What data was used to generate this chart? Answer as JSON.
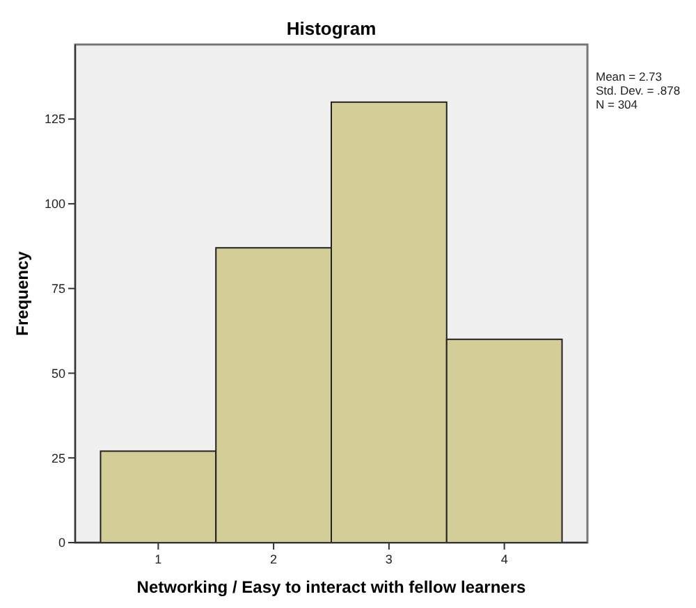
{
  "chart_data": {
    "type": "histogram",
    "title": "Histogram",
    "xlabel": "Networking / Easy to interact with fellow learners",
    "ylabel": "Frequency",
    "bins": [
      0.5,
      1.5,
      2.5,
      3.5,
      4.5
    ],
    "values": [
      27,
      87,
      130,
      60
    ],
    "color": "#d3ce97",
    "xlim": [
      0.28,
      4.72
    ],
    "xticks": [
      1,
      2,
      3,
      4
    ],
    "ylim": [
      0,
      147
    ],
    "yticks": [
      0,
      25,
      50,
      75,
      100,
      125
    ],
    "annotations": [
      "Mean = 2.73",
      "Std. Dev. = .878",
      "N = 304"
    ]
  }
}
